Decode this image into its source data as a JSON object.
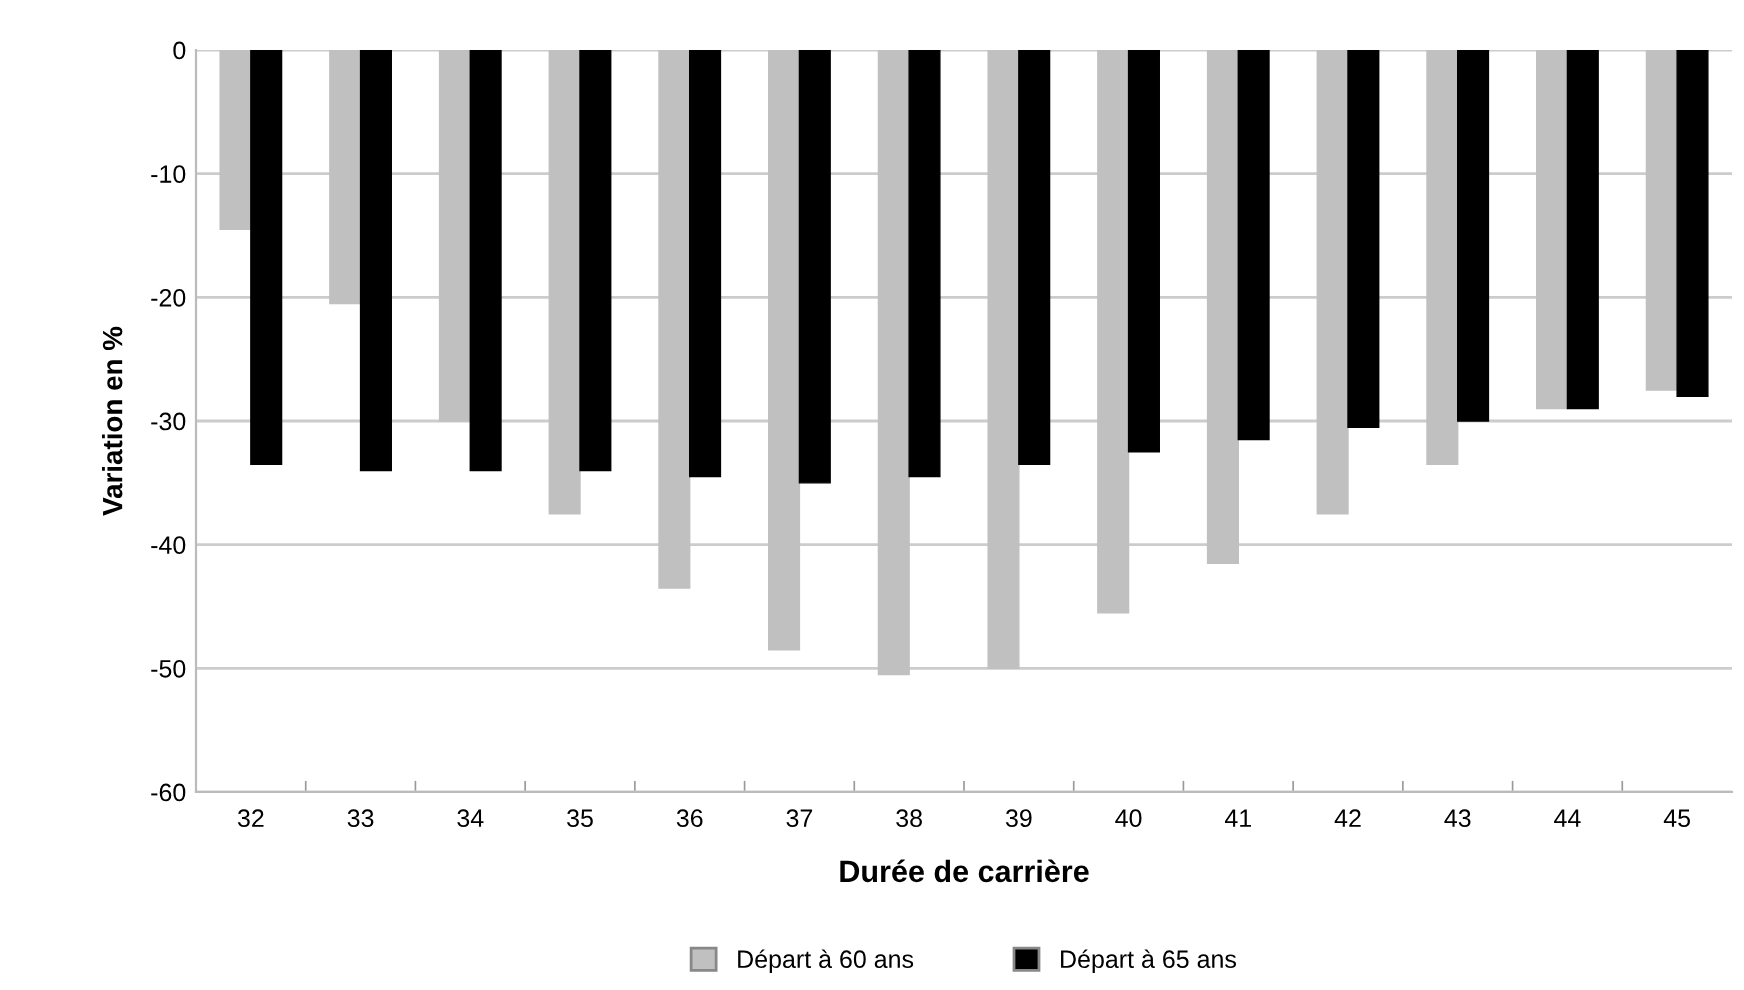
{
  "chart_data": {
    "type": "bar",
    "xlabel": "Durée de carrière",
    "ylabel": "Variation en %",
    "categories": [
      "32",
      "33",
      "34",
      "35",
      "36",
      "37",
      "38",
      "39",
      "40",
      "41",
      "42",
      "43",
      "44",
      "45"
    ],
    "series": [
      {
        "name": "Départ à 60 ans",
        "color": "#c0c0c0",
        "values": [
          -14.5,
          -20.5,
          -30,
          -37.5,
          -43.5,
          -48.5,
          -50.5,
          -50,
          -45.5,
          -41.5,
          -37.5,
          -33.5,
          -29,
          -27.5
        ]
      },
      {
        "name": "Départ à 65 ans",
        "color": "#000000",
        "values": [
          -33.5,
          -34,
          -34,
          -34,
          -34.5,
          -35,
          -34.5,
          -33.5,
          -32.5,
          -31.5,
          -30.5,
          -30,
          -29,
          -28
        ]
      }
    ],
    "ylim": [
      -60,
      0
    ],
    "yticks": [
      -60,
      -50,
      -40,
      -30,
      -20,
      -10,
      0
    ],
    "grid": "y",
    "legend": "bottom"
  }
}
